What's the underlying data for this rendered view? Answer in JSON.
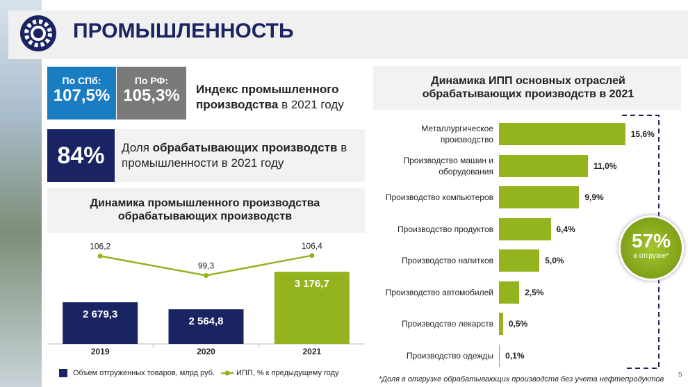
{
  "header": {
    "title": "ПРОМЫШЛЕННОСТЬ"
  },
  "kpis": {
    "spb_label": "По СПб:",
    "spb_value": "107,5%",
    "rf_label": "По РФ:",
    "rf_value": "105,3%",
    "index_bold": "Индекс промышленного производства",
    "index_rest": "в 2021 году",
    "share_value": "84%",
    "share_pre": "Доля",
    "share_bold": "обрабатывающих производств",
    "share_rest": "в промышленности в 2021 году"
  },
  "chart_data": [
    {
      "type": "bar",
      "title": "Динамика промышленного производства обрабатывающих производств",
      "categories": [
        "2019",
        "2020",
        "2021"
      ],
      "series": [
        {
          "name": "Объем отгруженных товаров, млрд руб.",
          "color": "#1b2462",
          "colors": [
            "#1b2462",
            "#1b2462",
            "#93b41f"
          ],
          "values": [
            2679.3,
            2564.8,
            3176.7
          ],
          "value_labels": [
            "2 679,3",
            "2 564,8",
            "3 176,7"
          ]
        },
        {
          "name": "ИПП, % к предыдущему году",
          "color": "#93b41f",
          "axis": "y2",
          "values": [
            106.2,
            99.3,
            106.4
          ],
          "value_labels": [
            "106,2",
            "99,3",
            "106,4"
          ]
        }
      ],
      "ylim": [
        2000,
        3700
      ],
      "y2lim": [
        75,
        112
      ]
    },
    {
      "type": "barh",
      "title": "Динамика ИПП основных отраслей обрабатывающих производств в 2021",
      "categories": [
        "Металлургическое производство",
        "Производство машин и оборудования",
        "Производство компьютеров",
        "Производство продуктов",
        "Производство напитков",
        "Производство автомобилей",
        "Производство лекарств",
        "Производство одежды"
      ],
      "values": [
        15.6,
        11.0,
        9.9,
        6.4,
        5.0,
        2.5,
        0.5,
        0.1
      ],
      "value_labels": [
        "15,6%",
        "11,0%",
        "9,9%",
        "6,4%",
        "5,0%",
        "2,5%",
        "0,5%",
        "0,1%"
      ],
      "color": "#93b41f",
      "xlim": [
        0,
        20
      ]
    }
  ],
  "badge": {
    "value": "57%",
    "label": "в отгрузке*"
  },
  "footnote": "*Доля в отгрузке обрабатывающих производств без учета нефтепродуктов",
  "page_number": "5"
}
